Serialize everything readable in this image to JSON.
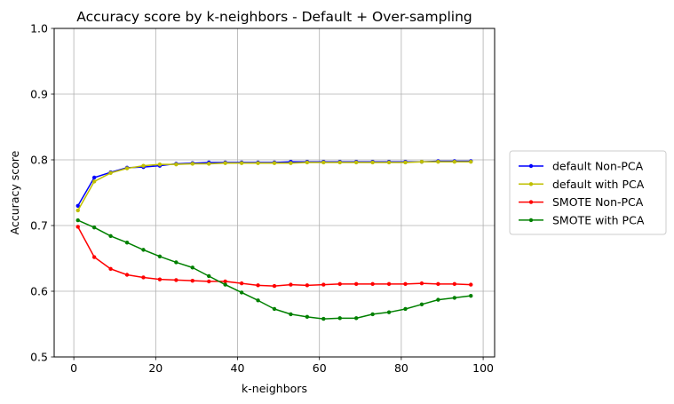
{
  "chart_data": {
    "type": "line",
    "title": "Accuracy score by k-neighbors - Default + Over-sampling",
    "xlabel": "k-neighbors",
    "ylabel": "Accuracy score",
    "xlim": [
      -4.8,
      102.8
    ],
    "ylim": [
      0.5,
      1.0
    ],
    "x_ticks": [
      0,
      20,
      40,
      60,
      80,
      100
    ],
    "y_ticks": [
      0.5,
      0.6,
      0.7,
      0.8,
      0.9,
      1.0
    ],
    "grid": true,
    "legend_position": "center-right outside",
    "x": [
      1,
      5,
      9,
      13,
      17,
      21,
      25,
      29,
      33,
      37,
      41,
      45,
      49,
      53,
      57,
      61,
      65,
      69,
      73,
      77,
      81,
      85,
      89,
      93,
      97
    ],
    "series": [
      {
        "name": "default Non-PCA",
        "color": "#0000ff",
        "values": [
          0.73,
          0.773,
          0.781,
          0.788,
          0.789,
          0.791,
          0.794,
          0.795,
          0.796,
          0.796,
          0.796,
          0.796,
          0.796,
          0.797,
          0.797,
          0.797,
          0.797,
          0.797,
          0.797,
          0.797,
          0.797,
          0.797,
          0.798,
          0.798,
          0.798
        ]
      },
      {
        "name": "default with PCA",
        "color": "#bfbf00",
        "values": [
          0.723,
          0.767,
          0.78,
          0.787,
          0.791,
          0.793,
          0.793,
          0.794,
          0.794,
          0.795,
          0.795,
          0.795,
          0.795,
          0.795,
          0.796,
          0.796,
          0.796,
          0.796,
          0.796,
          0.796,
          0.796,
          0.797,
          0.797,
          0.797,
          0.797
        ]
      },
      {
        "name": "SMOTE Non-PCA",
        "color": "#ff0000",
        "values": [
          0.698,
          0.652,
          0.634,
          0.625,
          0.621,
          0.618,
          0.617,
          0.616,
          0.615,
          0.615,
          0.612,
          0.609,
          0.608,
          0.61,
          0.609,
          0.61,
          0.611,
          0.611,
          0.611,
          0.611,
          0.611,
          0.612,
          0.611,
          0.611,
          0.61
        ]
      },
      {
        "name": "SMOTE with PCA",
        "color": "#008000",
        "values": [
          0.708,
          0.697,
          0.684,
          0.674,
          0.663,
          0.653,
          0.644,
          0.636,
          0.623,
          0.61,
          0.598,
          0.586,
          0.573,
          0.565,
          0.561,
          0.558,
          0.559,
          0.559,
          0.565,
          0.568,
          0.573,
          0.58,
          0.587,
          0.59,
          0.593
        ]
      }
    ]
  }
}
